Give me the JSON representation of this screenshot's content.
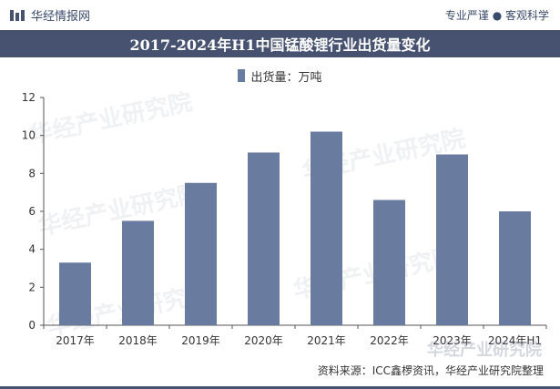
{
  "header": {
    "brand": "华经情报网",
    "tagline": "专业严谨 ● 客观科学"
  },
  "colors": {
    "title_bg": "#46526f",
    "bar": "#6a7ba0"
  },
  "watermark_text": "华经产业研究院",
  "footer": {
    "watermark": "华经产业研究院",
    "source": "资料来源：ICC鑫椤资讯，华经产业研究院整理"
  },
  "chart_data": {
    "type": "bar",
    "title": "2017-2024年H1中国锰酸锂行业出货量变化",
    "legend": "出货量：万吨",
    "categories": [
      "2017年",
      "2018年",
      "2019年",
      "2020年",
      "2021年",
      "2022年",
      "2023年",
      "2024年H1"
    ],
    "series": [
      {
        "name": "出货量：万吨",
        "values": [
          3.3,
          5.5,
          7.5,
          9.1,
          10.2,
          6.6,
          9.0,
          6.0
        ]
      }
    ],
    "ylim": [
      0,
      12
    ],
    "yticks": [
      0,
      2,
      4,
      6,
      8,
      10,
      12
    ],
    "grid": false,
    "legend_position": "top-center"
  }
}
